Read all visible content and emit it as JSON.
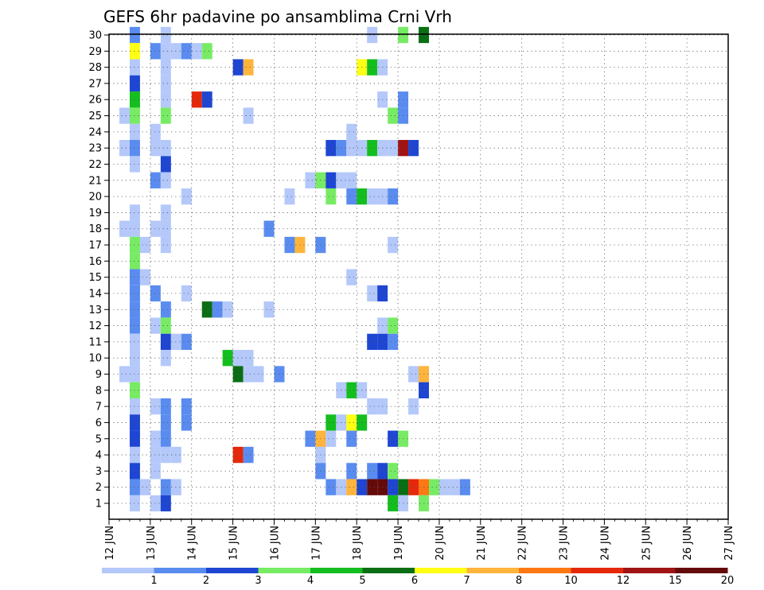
{
  "chart_data": {
    "type": "heatmap",
    "title": "GEFS 6hr padavine po ansamblima Crni Vrh",
    "x_labels": [
      "12 JUN",
      "13 JUN",
      "14 JUN",
      "15 JUN",
      "16 JUN",
      "17 JUN",
      "18 JUN",
      "19 JUN",
      "20 JUN",
      "21 JUN",
      "22 JUN",
      "23 JUN",
      "24 JUN",
      "25 JUN",
      "26 JUN",
      "27 JUN"
    ],
    "y_labels": [
      "1",
      "2",
      "3",
      "4",
      "5",
      "6",
      "7",
      "8",
      "9",
      "10",
      "11",
      "12",
      "13",
      "14",
      "15",
      "16",
      "17",
      "18",
      "19",
      "20",
      "21",
      "22",
      "23",
      "24",
      "25",
      "26",
      "27",
      "28",
      "29",
      "30"
    ],
    "x_steps_per_day": 4,
    "grid": "dotted",
    "legend": {
      "placement": "bottom",
      "tick_labels": [
        "1",
        "2",
        "3",
        "4",
        "5",
        "6",
        "7",
        "8",
        "10",
        "12",
        "15",
        "20"
      ],
      "colors": [
        "#b4c8fa",
        "#5a8cf0",
        "#1e46d2",
        "#78eb64",
        "#14be1e",
        "#0a6e14",
        "#ffff14",
        "#ffb43c",
        "#ff7814",
        "#e6280a",
        "#a01414",
        "#640a0a"
      ]
    },
    "cells": [
      {
        "member": 30,
        "step": 1,
        "cls": 1
      },
      {
        "member": 30,
        "step": 4,
        "cls": 0
      },
      {
        "member": 30,
        "step": 24,
        "cls": 0
      },
      {
        "member": 30,
        "step": 27,
        "cls": 3
      },
      {
        "member": 30,
        "step": 29,
        "cls": 5
      },
      {
        "member": 29,
        "step": 1,
        "cls": 6
      },
      {
        "member": 29,
        "step": 3,
        "cls": 1
      },
      {
        "member": 29,
        "step": 4,
        "cls": 0
      },
      {
        "member": 29,
        "step": 5,
        "cls": 0
      },
      {
        "member": 29,
        "step": 6,
        "cls": 1
      },
      {
        "member": 29,
        "step": 7,
        "cls": 0
      },
      {
        "member": 29,
        "step": 8,
        "cls": 3
      },
      {
        "member": 28,
        "step": 1,
        "cls": 0
      },
      {
        "member": 28,
        "step": 4,
        "cls": 0
      },
      {
        "member": 28,
        "step": 11,
        "cls": 2
      },
      {
        "member": 28,
        "step": 12,
        "cls": 7
      },
      {
        "member": 28,
        "step": 23,
        "cls": 6
      },
      {
        "member": 28,
        "step": 24,
        "cls": 4
      },
      {
        "member": 28,
        "step": 25,
        "cls": 0
      },
      {
        "member": 27,
        "step": 1,
        "cls": 2
      },
      {
        "member": 27,
        "step": 4,
        "cls": 0
      },
      {
        "member": 26,
        "step": 1,
        "cls": 4
      },
      {
        "member": 26,
        "step": 4,
        "cls": 0
      },
      {
        "member": 26,
        "step": 7,
        "cls": 9
      },
      {
        "member": 26,
        "step": 8,
        "cls": 2
      },
      {
        "member": 26,
        "step": 25,
        "cls": 0
      },
      {
        "member": 26,
        "step": 27,
        "cls": 1
      },
      {
        "member": 25,
        "step": 0,
        "cls": 0
      },
      {
        "member": 25,
        "step": 1,
        "cls": 3
      },
      {
        "member": 25,
        "step": 4,
        "cls": 3
      },
      {
        "member": 25,
        "step": 12,
        "cls": 0
      },
      {
        "member": 25,
        "step": 26,
        "cls": 3
      },
      {
        "member": 25,
        "step": 27,
        "cls": 1
      },
      {
        "member": 24,
        "step": 1,
        "cls": 0
      },
      {
        "member": 24,
        "step": 3,
        "cls": 0
      },
      {
        "member": 24,
        "step": 22,
        "cls": 0
      },
      {
        "member": 23,
        "step": 0,
        "cls": 0
      },
      {
        "member": 23,
        "step": 1,
        "cls": 1
      },
      {
        "member": 23,
        "step": 3,
        "cls": 0
      },
      {
        "member": 23,
        "step": 4,
        "cls": 0
      },
      {
        "member": 23,
        "step": 20,
        "cls": 2
      },
      {
        "member": 23,
        "step": 21,
        "cls": 1
      },
      {
        "member": 23,
        "step": 22,
        "cls": 0
      },
      {
        "member": 23,
        "step": 23,
        "cls": 0
      },
      {
        "member": 23,
        "step": 24,
        "cls": 4
      },
      {
        "member": 23,
        "step": 25,
        "cls": 0
      },
      {
        "member": 23,
        "step": 26,
        "cls": 0
      },
      {
        "member": 23,
        "step": 27,
        "cls": 10
      },
      {
        "member": 23,
        "step": 28,
        "cls": 2
      },
      {
        "member": 22,
        "step": 1,
        "cls": 0
      },
      {
        "member": 22,
        "step": 4,
        "cls": 2
      },
      {
        "member": 21,
        "step": 3,
        "cls": 1
      },
      {
        "member": 21,
        "step": 4,
        "cls": 0
      },
      {
        "member": 21,
        "step": 18,
        "cls": 0
      },
      {
        "member": 21,
        "step": 19,
        "cls": 3
      },
      {
        "member": 21,
        "step": 20,
        "cls": 2
      },
      {
        "member": 21,
        "step": 21,
        "cls": 0
      },
      {
        "member": 21,
        "step": 22,
        "cls": 0
      },
      {
        "member": 20,
        "step": 6,
        "cls": 0
      },
      {
        "member": 20,
        "step": 16,
        "cls": 0
      },
      {
        "member": 20,
        "step": 20,
        "cls": 3
      },
      {
        "member": 20,
        "step": 22,
        "cls": 1
      },
      {
        "member": 20,
        "step": 23,
        "cls": 4
      },
      {
        "member": 20,
        "step": 24,
        "cls": 0
      },
      {
        "member": 20,
        "step": 25,
        "cls": 0
      },
      {
        "member": 20,
        "step": 26,
        "cls": 1
      },
      {
        "member": 19,
        "step": 1,
        "cls": 0
      },
      {
        "member": 19,
        "step": 4,
        "cls": 0
      },
      {
        "member": 18,
        "step": 0,
        "cls": 0
      },
      {
        "member": 18,
        "step": 1,
        "cls": 0
      },
      {
        "member": 18,
        "step": 3,
        "cls": 0
      },
      {
        "member": 18,
        "step": 4,
        "cls": 0
      },
      {
        "member": 18,
        "step": 14,
        "cls": 1
      },
      {
        "member": 17,
        "step": 1,
        "cls": 3
      },
      {
        "member": 17,
        "step": 2,
        "cls": 0
      },
      {
        "member": 17,
        "step": 4,
        "cls": 0
      },
      {
        "member": 17,
        "step": 16,
        "cls": 1
      },
      {
        "member": 17,
        "step": 17,
        "cls": 7
      },
      {
        "member": 17,
        "step": 19,
        "cls": 1
      },
      {
        "member": 17,
        "step": 26,
        "cls": 0
      },
      {
        "member": 16,
        "step": 1,
        "cls": 3
      },
      {
        "member": 15,
        "step": 1,
        "cls": 1
      },
      {
        "member": 15,
        "step": 2,
        "cls": 0
      },
      {
        "member": 15,
        "step": 22,
        "cls": 0
      },
      {
        "member": 14,
        "step": 1,
        "cls": 1
      },
      {
        "member": 14,
        "step": 3,
        "cls": 1
      },
      {
        "member": 14,
        "step": 6,
        "cls": 0
      },
      {
        "member": 14,
        "step": 24,
        "cls": 0
      },
      {
        "member": 14,
        "step": 25,
        "cls": 2
      },
      {
        "member": 13,
        "step": 1,
        "cls": 1
      },
      {
        "member": 13,
        "step": 4,
        "cls": 1
      },
      {
        "member": 13,
        "step": 8,
        "cls": 5
      },
      {
        "member": 13,
        "step": 9,
        "cls": 1
      },
      {
        "member": 13,
        "step": 10,
        "cls": 0
      },
      {
        "member": 13,
        "step": 14,
        "cls": 0
      },
      {
        "member": 12,
        "step": 1,
        "cls": 1
      },
      {
        "member": 12,
        "step": 3,
        "cls": 0
      },
      {
        "member": 12,
        "step": 4,
        "cls": 3
      },
      {
        "member": 12,
        "step": 25,
        "cls": 0
      },
      {
        "member": 12,
        "step": 26,
        "cls": 3
      },
      {
        "member": 11,
        "step": 1,
        "cls": 0
      },
      {
        "member": 11,
        "step": 4,
        "cls": 2
      },
      {
        "member": 11,
        "step": 5,
        "cls": 0
      },
      {
        "member": 11,
        "step": 6,
        "cls": 1
      },
      {
        "member": 11,
        "step": 24,
        "cls": 2
      },
      {
        "member": 11,
        "step": 25,
        "cls": 2
      },
      {
        "member": 11,
        "step": 26,
        "cls": 1
      },
      {
        "member": 10,
        "step": 1,
        "cls": 0
      },
      {
        "member": 10,
        "step": 4,
        "cls": 0
      },
      {
        "member": 10,
        "step": 10,
        "cls": 4
      },
      {
        "member": 10,
        "step": 11,
        "cls": 0
      },
      {
        "member": 10,
        "step": 12,
        "cls": 0
      },
      {
        "member": 9,
        "step": 0,
        "cls": 0
      },
      {
        "member": 9,
        "step": 1,
        "cls": 0
      },
      {
        "member": 9,
        "step": 11,
        "cls": 5
      },
      {
        "member": 9,
        "step": 12,
        "cls": 0
      },
      {
        "member": 9,
        "step": 13,
        "cls": 0
      },
      {
        "member": 9,
        "step": 15,
        "cls": 1
      },
      {
        "member": 9,
        "step": 28,
        "cls": 0
      },
      {
        "member": 9,
        "step": 29,
        "cls": 7
      },
      {
        "member": 8,
        "step": 1,
        "cls": 3
      },
      {
        "member": 8,
        "step": 21,
        "cls": 0
      },
      {
        "member": 8,
        "step": 22,
        "cls": 4
      },
      {
        "member": 8,
        "step": 23,
        "cls": 0
      },
      {
        "member": 8,
        "step": 29,
        "cls": 2
      },
      {
        "member": 7,
        "step": 1,
        "cls": 0
      },
      {
        "member": 7,
        "step": 3,
        "cls": 0
      },
      {
        "member": 7,
        "step": 4,
        "cls": 1
      },
      {
        "member": 7,
        "step": 6,
        "cls": 1
      },
      {
        "member": 7,
        "step": 24,
        "cls": 0
      },
      {
        "member": 7,
        "step": 25,
        "cls": 0
      },
      {
        "member": 7,
        "step": 28,
        "cls": 0
      },
      {
        "member": 6,
        "step": 1,
        "cls": 2
      },
      {
        "member": 6,
        "step": 4,
        "cls": 1
      },
      {
        "member": 6,
        "step": 6,
        "cls": 1
      },
      {
        "member": 6,
        "step": 20,
        "cls": 4
      },
      {
        "member": 6,
        "step": 21,
        "cls": 0
      },
      {
        "member": 6,
        "step": 22,
        "cls": 6
      },
      {
        "member": 6,
        "step": 23,
        "cls": 4
      },
      {
        "member": 5,
        "step": 1,
        "cls": 2
      },
      {
        "member": 5,
        "step": 3,
        "cls": 0
      },
      {
        "member": 5,
        "step": 4,
        "cls": 1
      },
      {
        "member": 5,
        "step": 18,
        "cls": 1
      },
      {
        "member": 5,
        "step": 19,
        "cls": 7
      },
      {
        "member": 5,
        "step": 20,
        "cls": 0
      },
      {
        "member": 5,
        "step": 22,
        "cls": 1
      },
      {
        "member": 5,
        "step": 26,
        "cls": 2
      },
      {
        "member": 5,
        "step": 27,
        "cls": 3
      },
      {
        "member": 4,
        "step": 1,
        "cls": 0
      },
      {
        "member": 4,
        "step": 3,
        "cls": 0
      },
      {
        "member": 4,
        "step": 4,
        "cls": 0
      },
      {
        "member": 4,
        "step": 5,
        "cls": 0
      },
      {
        "member": 4,
        "step": 11,
        "cls": 9
      },
      {
        "member": 4,
        "step": 12,
        "cls": 1
      },
      {
        "member": 4,
        "step": 19,
        "cls": 0
      },
      {
        "member": 3,
        "step": 1,
        "cls": 2
      },
      {
        "member": 3,
        "step": 3,
        "cls": 0
      },
      {
        "member": 3,
        "step": 19,
        "cls": 1
      },
      {
        "member": 3,
        "step": 22,
        "cls": 1
      },
      {
        "member": 3,
        "step": 24,
        "cls": 1
      },
      {
        "member": 3,
        "step": 25,
        "cls": 2
      },
      {
        "member": 3,
        "step": 26,
        "cls": 3
      },
      {
        "member": 2,
        "step": 1,
        "cls": 1
      },
      {
        "member": 2,
        "step": 2,
        "cls": 0
      },
      {
        "member": 2,
        "step": 4,
        "cls": 1
      },
      {
        "member": 2,
        "step": 5,
        "cls": 0
      },
      {
        "member": 2,
        "step": 20,
        "cls": 1
      },
      {
        "member": 2,
        "step": 21,
        "cls": 0
      },
      {
        "member": 2,
        "step": 22,
        "cls": 7
      },
      {
        "member": 2,
        "step": 23,
        "cls": 2
      },
      {
        "member": 2,
        "step": 24,
        "cls": 11
      },
      {
        "member": 2,
        "step": 25,
        "cls": 11
      },
      {
        "member": 2,
        "step": 26,
        "cls": 2
      },
      {
        "member": 2,
        "step": 27,
        "cls": 5
      },
      {
        "member": 2,
        "step": 28,
        "cls": 9
      },
      {
        "member": 2,
        "step": 29,
        "cls": 8
      },
      {
        "member": 2,
        "step": 30,
        "cls": 3
      },
      {
        "member": 2,
        "step": 31,
        "cls": 0
      },
      {
        "member": 2,
        "step": 32,
        "cls": 0
      },
      {
        "member": 2,
        "step": 33,
        "cls": 1
      },
      {
        "member": 1,
        "step": 1,
        "cls": 0
      },
      {
        "member": 1,
        "step": 3,
        "cls": 0
      },
      {
        "member": 1,
        "step": 4,
        "cls": 2
      },
      {
        "member": 1,
        "step": 26,
        "cls": 4
      },
      {
        "member": 1,
        "step": 27,
        "cls": 0
      },
      {
        "member": 1,
        "step": 29,
        "cls": 3
      }
    ]
  }
}
